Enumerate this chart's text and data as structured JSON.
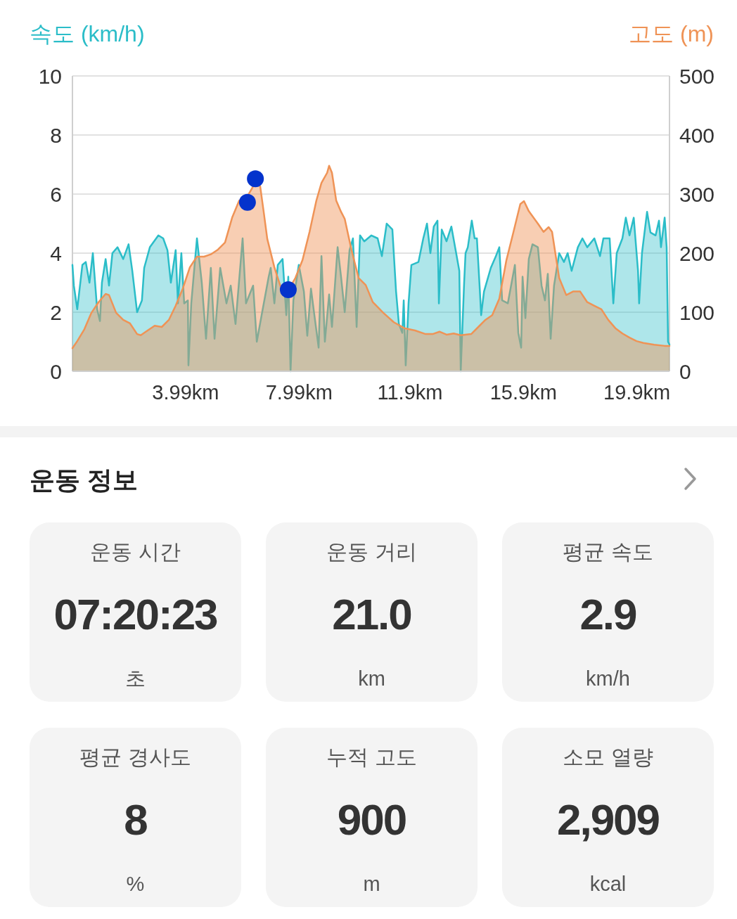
{
  "chart_data": [
    {
      "type": "area",
      "ylabel": "속도 (km/h)",
      "y2label": "고도 (m)",
      "xlim": [
        0,
        21.05
      ],
      "xticks": [
        {
          "value": 3.99,
          "label": "3.99km"
        },
        {
          "value": 7.99,
          "label": "7.99km"
        },
        {
          "value": 11.9,
          "label": "11.9km"
        },
        {
          "value": 15.9,
          "label": "15.9km"
        },
        {
          "value": 19.9,
          "label": "19.9km"
        }
      ],
      "ylim": [
        0,
        10
      ],
      "yticks": [
        0,
        2,
        4,
        6,
        8,
        10
      ],
      "y2lim": [
        0,
        500
      ],
      "y2ticks": [
        0,
        100,
        200,
        300,
        400,
        500
      ],
      "grid": "y",
      "series": [
        {
          "type": "area",
          "color": "#2bbdc8",
          "x": [
            0,
            0.05,
            0.17,
            0.35,
            0.47,
            0.6,
            0.72,
            0.87,
            0.97,
            1.04,
            1.17,
            1.29,
            1.41,
            1.59,
            1.79,
            1.98,
            2.11,
            2.28,
            2.45,
            2.53,
            2.73,
            3.03,
            3.2,
            3.35,
            3.47,
            3.64,
            3.72,
            3.84,
            3.94,
            4.07,
            4.09,
            4.19,
            4.39,
            4.56,
            4.71,
            4.88,
            5.01,
            5.21,
            5.43,
            5.58,
            5.75,
            6.0,
            6.12,
            6.37,
            6.5,
            6.67,
            6.92,
            6.99,
            7.12,
            7.24,
            7.41,
            7.54,
            7.61,
            7.69,
            7.79,
            7.98,
            8.16,
            8.28,
            8.41,
            8.53,
            8.68,
            8.78,
            8.9,
            9.05,
            9.15,
            9.35,
            9.47,
            9.6,
            9.77,
            9.89,
            10.02,
            10.14,
            10.29,
            10.54,
            10.76,
            10.91,
            11.08,
            11.28,
            11.41,
            11.51,
            11.63,
            11.68,
            11.75,
            11.85,
            11.95,
            12.2,
            12.37,
            12.5,
            12.62,
            12.74,
            12.87,
            12.92,
            13.02,
            13.19,
            13.36,
            13.51,
            13.64,
            13.69,
            13.81,
            13.86,
            13.94,
            14.08,
            14.18,
            14.26,
            14.36,
            14.41,
            14.51,
            14.63,
            14.75,
            14.93,
            15.05,
            15.15,
            15.35,
            15.6,
            15.72,
            15.82,
            15.87,
            15.97,
            16.09,
            16.22,
            16.41,
            16.54,
            16.66,
            16.76,
            16.86,
            16.98,
            17.16,
            17.33,
            17.46,
            17.6,
            17.82,
            17.98,
            18.15,
            18.4,
            18.6,
            18.72,
            18.94,
            19.07,
            19.19,
            19.39,
            19.51,
            19.64,
            19.79,
            19.94,
            19.98,
            20.08,
            20.26,
            20.38,
            20.56,
            20.68,
            20.75,
            20.88,
            20.95,
            21.0,
            21.05
          ],
          "values": [
            3.6,
            2.9,
            2.1,
            3.6,
            3.7,
            3.0,
            4.0,
            2.1,
            1.7,
            3.0,
            3.8,
            2.9,
            4.0,
            4.2,
            3.8,
            4.3,
            3.4,
            2.0,
            2.4,
            3.5,
            4.2,
            4.6,
            4.5,
            4.1,
            3.0,
            4.1,
            2.3,
            4.0,
            2.3,
            2.4,
            0.2,
            2.3,
            4.5,
            3.0,
            1.1,
            3.5,
            1.1,
            3.5,
            2.3,
            2.9,
            1.6,
            4.5,
            2.3,
            2.9,
            1.0,
            1.9,
            3.2,
            3.5,
            2.3,
            3.6,
            3.8,
            1.9,
            3.2,
            0.0,
            2.4,
            3.6,
            2.7,
            1.2,
            2.8,
            1.9,
            0.8,
            3.9,
            1.0,
            2.6,
            1.5,
            4.2,
            3.2,
            2.0,
            4.1,
            4.5,
            1.5,
            4.6,
            4.4,
            4.6,
            4.5,
            3.9,
            5.0,
            4.8,
            2.7,
            1.6,
            1.3,
            2.4,
            0.2,
            2.3,
            3.6,
            3.7,
            4.5,
            5.0,
            4.0,
            4.9,
            5.1,
            2.3,
            4.8,
            4.4,
            4.9,
            4.1,
            3.4,
            0.0,
            3.0,
            4.0,
            4.2,
            5.1,
            4.5,
            4.5,
            2.8,
            1.9,
            2.7,
            3.1,
            3.5,
            3.9,
            4.2,
            2.4,
            2.3,
            3.6,
            1.3,
            0.8,
            3.2,
            1.8,
            3.8,
            4.3,
            4.2,
            2.9,
            2.4,
            3.3,
            1.1,
            2.9,
            4.0,
            3.7,
            4.0,
            3.4,
            4.2,
            4.5,
            4.2,
            4.5,
            3.9,
            4.5,
            4.5,
            2.3,
            4.0,
            4.5,
            5.2,
            4.6,
            5.2,
            3.4,
            2.3,
            4.0,
            5.4,
            4.7,
            4.6,
            5.1,
            4.2,
            5.2,
            4.2,
            1.0,
            0.9
          ]
        },
        {
          "type": "area",
          "axis": "y2",
          "color": "#ef9356",
          "x": [
            0,
            0.17,
            0.42,
            0.67,
            0.92,
            1.17,
            1.29,
            1.54,
            1.79,
            2.03,
            2.28,
            2.41,
            2.65,
            2.9,
            3.15,
            3.4,
            3.64,
            3.89,
            4.14,
            4.39,
            4.64,
            4.88,
            5.13,
            5.38,
            5.63,
            5.88,
            6.12,
            6.37,
            6.5,
            6.62,
            6.74,
            6.87,
            7.12,
            7.36,
            7.61,
            7.86,
            8.11,
            8.36,
            8.6,
            8.78,
            8.98,
            9.05,
            9.15,
            9.3,
            9.47,
            9.6,
            9.84,
            10.09,
            10.34,
            10.59,
            10.96,
            11.33,
            11.7,
            12.08,
            12.45,
            12.7,
            12.94,
            13.19,
            13.44,
            13.69,
            14.06,
            14.31,
            14.56,
            14.8,
            15.05,
            15.3,
            15.55,
            15.79,
            15.92,
            16.09,
            16.41,
            16.61,
            16.79,
            16.91,
            17.16,
            17.41,
            17.65,
            17.9,
            18.15,
            18.4,
            18.65,
            18.89,
            19.14,
            19.39,
            19.64,
            19.89,
            20.13,
            20.51,
            20.88,
            21.05
          ],
          "values": [
            39,
            51,
            71,
            99,
            117,
            131,
            129,
            99,
            87,
            81,
            63,
            61,
            69,
            77,
            75,
            87,
            111,
            140,
            176,
            194,
            194,
            198,
            206,
            218,
            260,
            289,
            292,
            313,
            321,
            313,
            271,
            224,
            176,
            140,
            137,
            158,
            188,
            236,
            289,
            319,
            336,
            348,
            336,
            289,
            270,
            258,
            205,
            158,
            146,
            117,
            99,
            83,
            73,
            69,
            63,
            63,
            67,
            62,
            64,
            61,
            63,
            75,
            87,
            95,
            123,
            188,
            236,
            283,
            288,
            271,
            250,
            236,
            244,
            236,
            158,
            129,
            135,
            135,
            117,
            111,
            105,
            87,
            73,
            64,
            57,
            51,
            48,
            45,
            43,
            43
          ]
        },
        {
          "type": "scatter",
          "axis": "y2",
          "color": "#0433cc",
          "marker": "circle",
          "x": [
            6.17,
            6.45,
            7.61
          ],
          "values": [
            286,
            326,
            138
          ]
        }
      ]
    },
    {
      "type": "other",
      "title": "운동 정보",
      "annotations": [
        "운동 시간",
        "07:20:23",
        "초",
        "운동 거리",
        "21.0",
        "km",
        "평균 속도",
        "2.9",
        "km/h",
        "평균 경사도",
        "8",
        "%",
        "누적 고도",
        "900",
        "m",
        "소모 열량",
        "2,909",
        "kcal"
      ]
    }
  ]
}
